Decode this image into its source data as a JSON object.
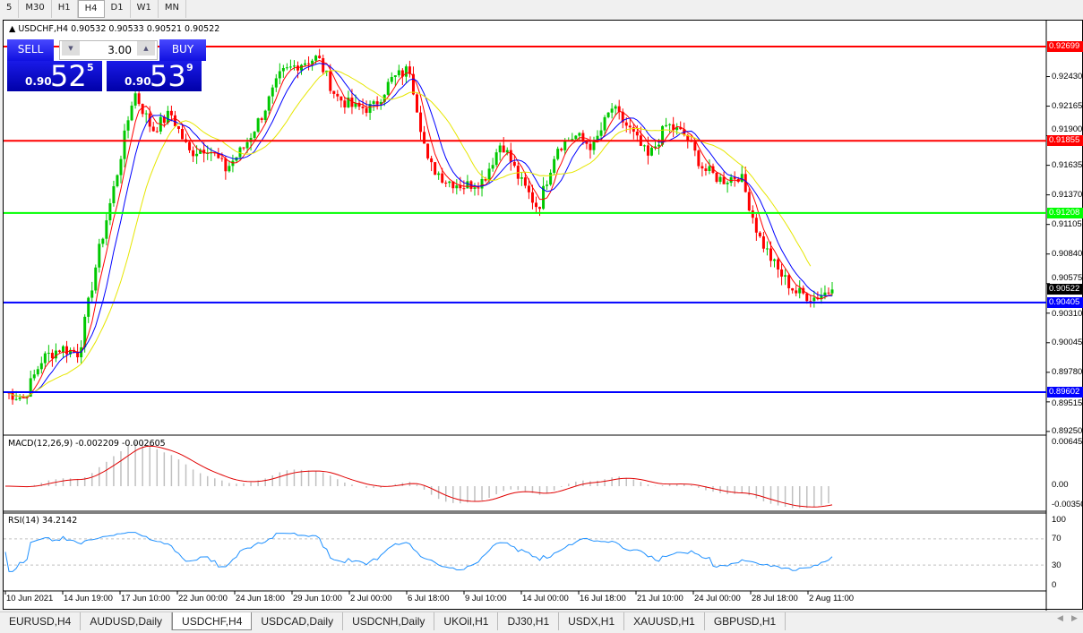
{
  "timeframes": [
    "5",
    "M30",
    "H1",
    "H4",
    "D1",
    "W1",
    "MN"
  ],
  "active_timeframe": "H4",
  "chart": {
    "title": "USDCHF,H4",
    "ohlc": "0.90532 0.90533 0.90521 0.90522"
  },
  "trade_panel": {
    "sell_label": "SELL",
    "buy_label": "BUY",
    "lot": "3.00",
    "sell_small": "0.90",
    "sell_big": "52",
    "sell_pip": "5",
    "buy_small": "0.90",
    "buy_big": "53",
    "buy_pip": "9"
  },
  "price_axis": [
    "0.92430",
    "0.92165",
    "0.91900",
    "0.91635",
    "0.91370",
    "0.91105",
    "0.90840",
    "0.90575",
    "0.90310",
    "0.90045",
    "0.89780",
    "0.89515",
    "0.89250"
  ],
  "levels": [
    {
      "price": "0.92699",
      "color": "#ff0000"
    },
    {
      "price": "0.91855",
      "color": "#ff0000"
    },
    {
      "price": "0.91208",
      "color": "#00ff00"
    },
    {
      "price": "0.90405",
      "color": "#0000ff"
    },
    {
      "price": "0.89602",
      "color": "#0000ff"
    }
  ],
  "current_price": "0.90522",
  "closes": [
    0.896,
    0.8955,
    0.899,
    0.9,
    0.8995,
    0.908,
    0.915,
    0.923,
    0.9195,
    0.921,
    0.9175,
    0.918,
    0.916,
    0.918,
    0.921,
    0.9245,
    0.9255,
    0.926,
    0.9225,
    0.9215,
    0.9215,
    0.924,
    0.925,
    0.9165,
    0.915,
    0.9145,
    0.915,
    0.9185,
    0.915,
    0.9125,
    0.918,
    0.919,
    0.918,
    0.9215,
    0.9195,
    0.917,
    0.92,
    0.919,
    0.916,
    0.915,
    0.9155,
    0.91,
    0.907,
    0.905,
    0.9045,
    0.90522
  ],
  "macd": {
    "label": "MACD(12,26,9) -0.002209 -0.002605",
    "axis": [
      "0.006451",
      "0.00",
      "-0.003507"
    ]
  },
  "rsi": {
    "label": "RSI(14) 34.2142",
    "axis": [
      "100",
      "70",
      "30",
      "0"
    ]
  },
  "time_axis": [
    "10 Jun 2021",
    "14 Jun 19:00",
    "17 Jun 10:00",
    "22 Jun 00:00",
    "24 Jun 18:00",
    "29 Jun 10:00",
    "2 Jul 00:00",
    "6 Jul 18:00",
    "9 Jul 10:00",
    "14 Jul 00:00",
    "16 Jul 18:00",
    "21 Jul 10:00",
    "24 Jul 00:00",
    "28 Jul 18:00",
    "2 Aug 11:00"
  ],
  "symbol_tabs": [
    "EURUSD,H4",
    "AUDUSD,Daily",
    "USDCHF,H4",
    "USDCAD,Daily",
    "USDCNH,Daily",
    "UKOil,H1",
    "DJ30,H1",
    "USDX,H1",
    "XAUUSD,H1",
    "GBPUSD,H1"
  ],
  "active_tab": "USDCHF,H4",
  "colors": {
    "bull": "#00c800",
    "bear": "#ff0000",
    "ma_fast": "#ff0000",
    "ma_mid": "#0000ff",
    "ma_slow": "#ffff00",
    "rsi": "#1e90ff",
    "hist": "#c0c0c0"
  }
}
